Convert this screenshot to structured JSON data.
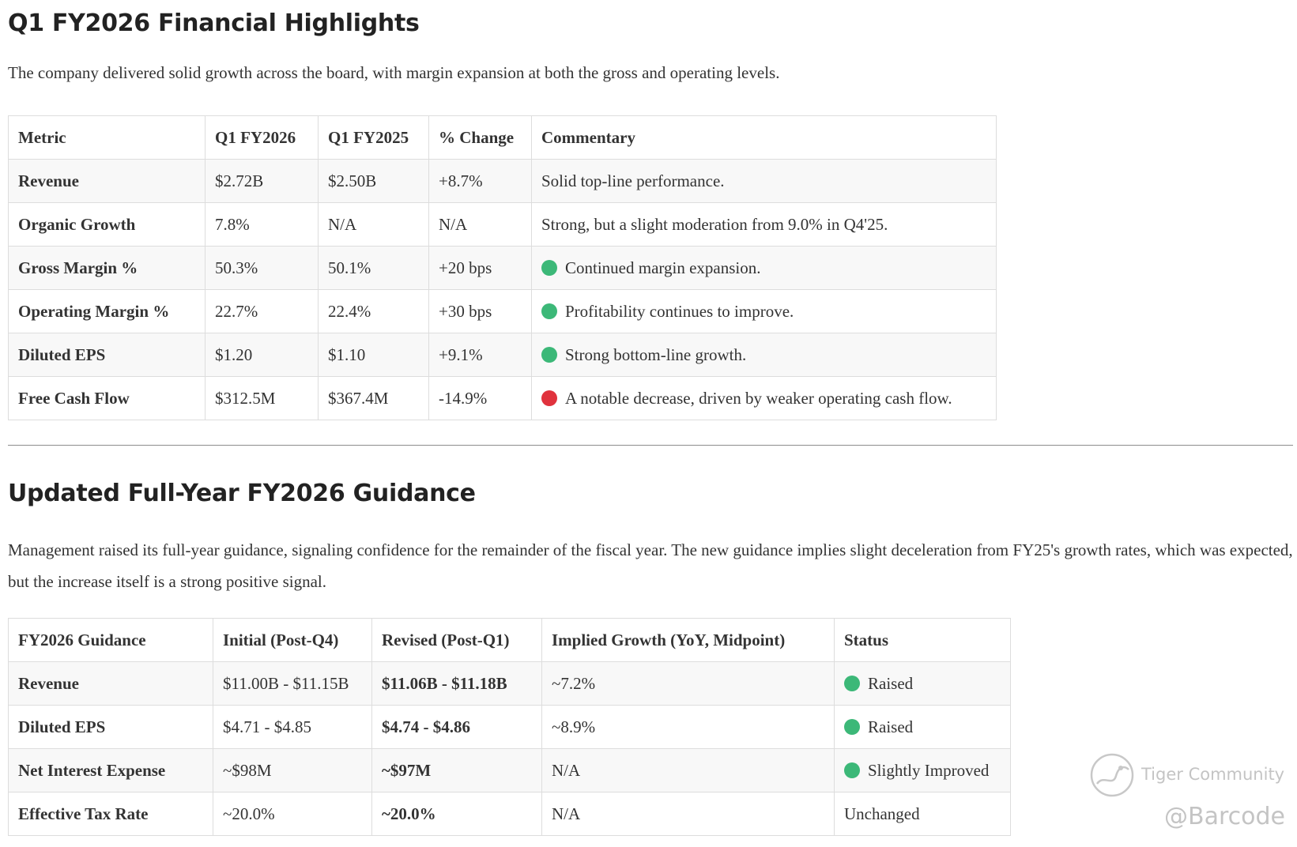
{
  "section1": {
    "title": "Q1 FY2026 Financial Highlights",
    "intro": "The company delivered solid growth across the board, with margin expansion at both the gross and operating levels.",
    "headers": [
      "Metric",
      "Q1 FY2026",
      "Q1 FY2025",
      "% Change",
      "Commentary"
    ],
    "rows": [
      {
        "metric": "Revenue",
        "q1_fy2026": "$2.72B",
        "q1_fy2025": "$2.50B",
        "change": "+8.7%",
        "commentary": "Solid top-line performance.",
        "indicator": "none"
      },
      {
        "metric": "Organic Growth",
        "q1_fy2026": "7.8%",
        "q1_fy2025": "N/A",
        "change": "N/A",
        "commentary": "Strong, but a slight moderation from 9.0% in Q4'25.",
        "indicator": "none"
      },
      {
        "metric": "Gross Margin %",
        "q1_fy2026": "50.3%",
        "q1_fy2025": "50.1%",
        "change": "+20 bps",
        "commentary": "Continued margin expansion.",
        "indicator": "green"
      },
      {
        "metric": "Operating Margin %",
        "q1_fy2026": "22.7%",
        "q1_fy2025": "22.4%",
        "change": "+30 bps",
        "commentary": "Profitability continues to improve.",
        "indicator": "green"
      },
      {
        "metric": "Diluted EPS",
        "q1_fy2026": "$1.20",
        "q1_fy2025": "$1.10",
        "change": "+9.1%",
        "commentary": "Strong bottom-line growth.",
        "indicator": "green"
      },
      {
        "metric": "Free Cash Flow",
        "q1_fy2026": "$312.5M",
        "q1_fy2025": "$367.4M",
        "change": "-14.9%",
        "commentary": "A notable decrease, driven by weaker operating cash flow.",
        "indicator": "red"
      }
    ]
  },
  "section2": {
    "title": "Updated Full-Year FY2026 Guidance",
    "intro": "Management raised its full-year guidance, signaling confidence for the remainder of the fiscal year. The new guidance implies slight deceleration from FY25's growth rates, which was expected, but the increase itself is a strong positive signal.",
    "headers": [
      "FY2026 Guidance",
      "Initial (Post-Q4)",
      "Revised (Post-Q1)",
      "Implied Growth (YoY, Midpoint)",
      "Status"
    ],
    "rows": [
      {
        "item": "Revenue",
        "initial": "$11.00B - $11.15B",
        "revised": "$11.06B - $11.18B",
        "implied": "~7.2%",
        "status": "Raised",
        "indicator": "green"
      },
      {
        "item": "Diluted EPS",
        "initial": "$4.71 - $4.85",
        "revised": "$4.74 - $4.86",
        "implied": "~8.9%",
        "status": "Raised",
        "indicator": "green"
      },
      {
        "item": "Net Interest Expense",
        "initial": "~$98M",
        "revised": "~$97M",
        "implied": "N/A",
        "status": "Slightly Improved",
        "indicator": "green"
      },
      {
        "item": "Effective Tax Rate",
        "initial": "~20.0%",
        "revised": "~20.0%",
        "implied": "N/A",
        "status": "Unchanged",
        "indicator": "none"
      }
    ]
  },
  "watermark": {
    "community": "Tiger Community",
    "handle": "@Barcode"
  },
  "colors": {
    "positive": "#3cb878",
    "negative": "#e0323d",
    "text": "#333333",
    "border": "#dddddd",
    "row_alt": "#f8f8f8"
  }
}
